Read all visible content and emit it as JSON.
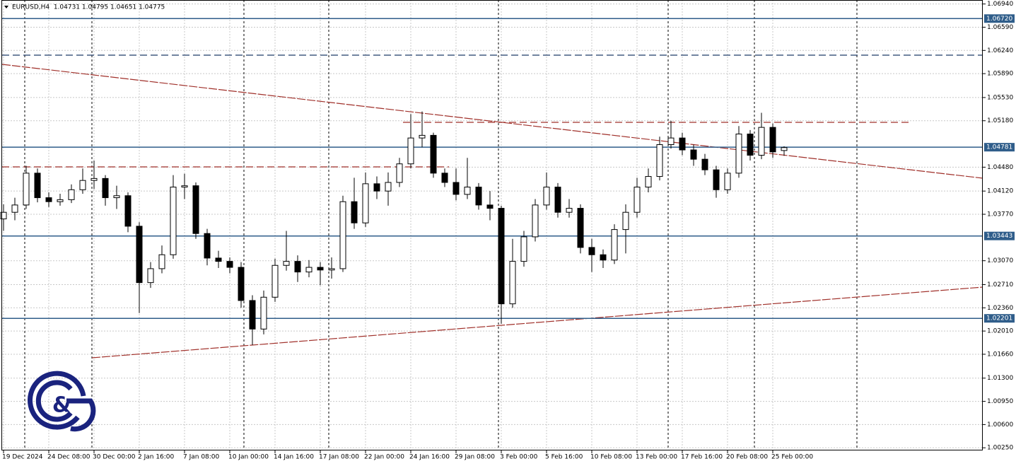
{
  "chart_data": {
    "type": "candlestick",
    "header": "EURUSD,H4  1.04731 1.04795 1.04651 1.04775",
    "categories": [
      "19 Dec 2024",
      null,
      null,
      null,
      "24 Dec 08:00",
      null,
      null,
      null,
      "30 Dec 00:00",
      null,
      null,
      null,
      "2 Jan 16:00",
      null,
      null,
      null,
      "7 Jan 08:00",
      null,
      null,
      null,
      "10 Jan 00:00",
      null,
      null,
      null,
      "14 Jan 16:00",
      null,
      null,
      null,
      "17 Jan 08:00",
      null,
      null,
      null,
      "22 Jan 00:00",
      null,
      null,
      null,
      "24 Jan 16:00",
      null,
      null,
      null,
      "29 Jan 08:00",
      null,
      null,
      null,
      "3 Feb 00:00",
      null,
      null,
      null,
      "5 Feb 16:00",
      null,
      null,
      null,
      "10 Feb 08:00",
      null,
      null,
      null,
      "13 Feb 00:00",
      null,
      null,
      null,
      "17 Feb 16:00",
      null,
      null,
      null,
      "20 Feb 08:00",
      null,
      null,
      null,
      "25 Feb 00:00",
      null
    ],
    "open": [
      1.037,
      1.038,
      1.0391,
      1.0439,
      1.0402,
      1.0396,
      1.0399,
      1.0414,
      1.0428,
      1.0431,
      1.0402,
      1.0405,
      1.0359,
      1.0274,
      1.0295,
      1.0316,
      1.0418,
      1.042,
      1.0348,
      1.0311,
      1.0306,
      1.0297,
      1.0247,
      1.0204,
      1.0252,
      1.03,
      1.0306,
      1.029,
      1.0297,
      1.0293,
      1.0295,
      1.0396,
      1.0364,
      1.0423,
      1.0412,
      1.0425,
      1.0453,
      1.0492,
      1.0496,
      1.0439,
      1.0425,
      1.0407,
      1.0418,
      1.0391,
      1.0386,
      1.0242,
      1.0306,
      1.0343,
      1.0391,
      1.0418,
      1.038,
      1.0386,
      1.0327,
      1.0316,
      1.0308,
      1.0354,
      1.038,
      1.0418,
      1.0434,
      1.0482,
      1.0492,
      1.0474,
      1.046,
      1.0444,
      1.0414,
      1.0439,
      1.0498,
      1.0466,
      1.0508,
      1.04731
    ],
    "high": [
      1.0392,
      1.0402,
      1.045,
      1.0446,
      1.041,
      1.0408,
      1.0422,
      1.0446,
      1.0458,
      1.0436,
      1.042,
      1.041,
      1.0365,
      1.0305,
      1.033,
      1.0436,
      1.0438,
      1.0425,
      1.0355,
      1.0322,
      1.0312,
      1.0305,
      1.0255,
      1.0262,
      1.031,
      1.0352,
      1.0315,
      1.0308,
      1.0305,
      1.0312,
      1.0405,
      1.0432,
      1.044,
      1.0434,
      1.044,
      1.0462,
      1.0528,
      1.0532,
      1.05,
      1.0446,
      1.0446,
      1.0462,
      1.0424,
      1.0412,
      1.039,
      1.034,
      1.0352,
      1.04,
      1.044,
      1.0424,
      1.04,
      1.0392,
      1.034,
      1.0324,
      1.0362,
      1.0392,
      1.0432,
      1.0446,
      1.0494,
      1.0518,
      1.05,
      1.0482,
      1.0468,
      1.045,
      1.0446,
      1.051,
      1.0504,
      1.053,
      1.0514,
      1.04795
    ],
    "low": [
      1.0352,
      1.0368,
      1.0385,
      1.0395,
      1.0388,
      1.039,
      1.0394,
      1.0408,
      1.0415,
      1.039,
      1.0385,
      1.035,
      1.0228,
      1.0266,
      1.0288,
      1.031,
      1.04,
      1.034,
      1.03,
      1.0296,
      1.0288,
      1.0236,
      1.018,
      1.0196,
      1.0245,
      1.0292,
      1.0275,
      1.0282,
      1.027,
      1.028,
      1.029,
      1.0355,
      1.0358,
      1.04,
      1.039,
      1.0418,
      1.0446,
      1.0478,
      1.0432,
      1.0418,
      1.0398,
      1.04,
      1.0384,
      1.0368,
      1.0212,
      1.0236,
      1.0298,
      1.0336,
      1.0384,
      1.0372,
      1.0372,
      1.0318,
      1.029,
      1.0296,
      1.0302,
      1.0318,
      1.0372,
      1.041,
      1.0428,
      1.0476,
      1.0466,
      1.045,
      1.0436,
      1.0402,
      1.0408,
      1.0432,
      1.0458,
      1.046,
      1.0462,
      1.04651
    ],
    "close": [
      1.038,
      1.0391,
      1.0439,
      1.0402,
      1.0396,
      1.0399,
      1.0414,
      1.0428,
      1.0431,
      1.0402,
      1.0405,
      1.0359,
      1.0274,
      1.0295,
      1.0316,
      1.0418,
      1.042,
      1.0348,
      1.0311,
      1.0306,
      1.0297,
      1.0247,
      1.0204,
      1.0252,
      1.03,
      1.0306,
      1.029,
      1.0297,
      1.0293,
      1.0295,
      1.0396,
      1.0364,
      1.0423,
      1.0412,
      1.0425,
      1.0453,
      1.0492,
      1.0496,
      1.0439,
      1.0425,
      1.0407,
      1.0418,
      1.0391,
      1.0386,
      1.0242,
      1.0306,
      1.0343,
      1.0391,
      1.0418,
      1.038,
      1.0386,
      1.0327,
      1.0316,
      1.0308,
      1.0354,
      1.038,
      1.0418,
      1.0434,
      1.0482,
      1.0492,
      1.0474,
      1.046,
      1.0444,
      1.0414,
      1.0439,
      1.0498,
      1.0466,
      1.0508,
      1.0471,
      1.04775
    ],
    "ylim": [
      1.0021,
      1.07
    ],
    "yticks": [
      {
        "value": 1.0694,
        "label": "1.06940"
      },
      {
        "value": 1.0659,
        "label": "1.06590"
      },
      {
        "value": 1.0624,
        "label": "1.06240"
      },
      {
        "value": 1.0589,
        "label": "1.05890"
      },
      {
        "value": 1.0553,
        "label": "1.05530"
      },
      {
        "value": 1.0518,
        "label": "1.05180"
      },
      {
        "value": 1.0448,
        "label": "1.04480"
      },
      {
        "value": 1.0412,
        "label": "1.04120"
      },
      {
        "value": 1.0377,
        "label": "1.03770"
      },
      {
        "value": 1.0307,
        "label": "1.03070"
      },
      {
        "value": 1.0271,
        "label": "1.02710"
      },
      {
        "value": 1.0236,
        "label": "1.02360"
      },
      {
        "value": 1.0201,
        "label": "1.02010"
      },
      {
        "value": 1.0166,
        "label": "1.01660"
      },
      {
        "value": 1.013,
        "label": "1.01300"
      },
      {
        "value": 1.0095,
        "label": "1.00950"
      },
      {
        "value": 1.006,
        "label": "1.00600"
      },
      {
        "value": 1.0025,
        "label": "1.00250"
      }
    ],
    "levels": [
      {
        "value": 1.0672,
        "label": "1.06720"
      },
      {
        "value": 1.04781,
        "label": "1.04781"
      },
      {
        "value": 1.03443,
        "label": "1.03443"
      },
      {
        "value": 1.02201,
        "label": "1.02201"
      }
    ],
    "level_color": "#2f5d8a",
    "grid": true
  }
}
